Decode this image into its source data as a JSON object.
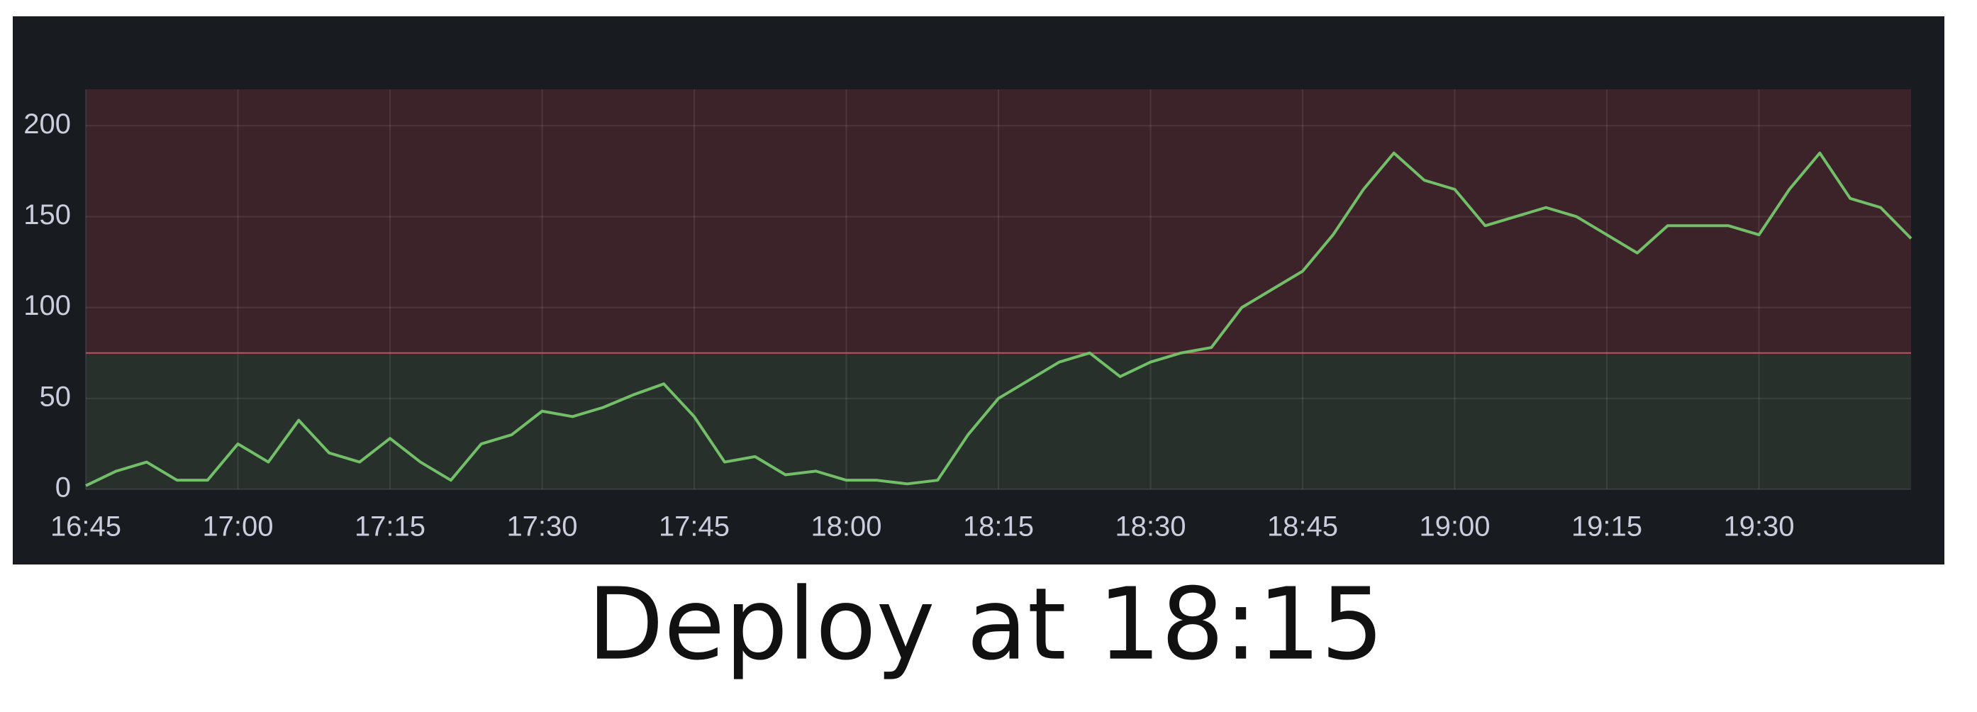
{
  "chart_data": {
    "type": "line",
    "annotation": "Deploy at 18:15",
    "x": [
      "16:45",
      "16:48",
      "16:51",
      "16:54",
      "16:57",
      "17:00",
      "17:03",
      "17:06",
      "17:09",
      "17:12",
      "17:15",
      "17:18",
      "17:21",
      "17:24",
      "17:27",
      "17:30",
      "17:33",
      "17:36",
      "17:39",
      "17:42",
      "17:45",
      "17:48",
      "17:51",
      "17:54",
      "17:57",
      "18:00",
      "18:03",
      "18:06",
      "18:09",
      "18:12",
      "18:15",
      "18:18",
      "18:21",
      "18:24",
      "18:27",
      "18:30",
      "18:33",
      "18:36",
      "18:39",
      "18:42",
      "18:45",
      "18:48",
      "18:51",
      "18:54",
      "18:57",
      "19:00",
      "19:03",
      "19:06",
      "19:09",
      "19:12",
      "19:15",
      "19:18",
      "19:21",
      "19:24",
      "19:27",
      "19:30",
      "19:33",
      "19:36",
      "19:39",
      "19:42",
      "19:45"
    ],
    "series": [
      {
        "color": "#73bf69",
        "values": [
          2,
          10,
          15,
          5,
          5,
          25,
          15,
          38,
          20,
          15,
          28,
          15,
          5,
          25,
          30,
          43,
          40,
          45,
          52,
          58,
          40,
          15,
          18,
          8,
          10,
          5,
          5,
          3,
          5,
          30,
          50,
          60,
          70,
          75,
          62,
          70,
          75,
          78,
          100,
          110,
          120,
          140,
          165,
          185,
          170,
          165,
          145,
          150,
          155,
          150,
          140,
          130,
          145,
          145,
          145,
          140,
          165,
          185,
          160,
          155,
          138
        ]
      }
    ],
    "xlim": [
      "16:45",
      "19:45"
    ],
    "xticks": [
      "16:45",
      "17:00",
      "17:15",
      "17:30",
      "17:45",
      "18:00",
      "18:15",
      "18:30",
      "18:45",
      "19:00",
      "19:15",
      "19:30"
    ],
    "ylim": [
      0,
      220
    ],
    "yticks": [
      0,
      50,
      100,
      150,
      200
    ],
    "grid": true,
    "threshold": 75,
    "threshold_colors": {
      "above": "#3b2329",
      "below": "#27302a",
      "line": "#c4505d"
    },
    "background": "#181b1f"
  }
}
